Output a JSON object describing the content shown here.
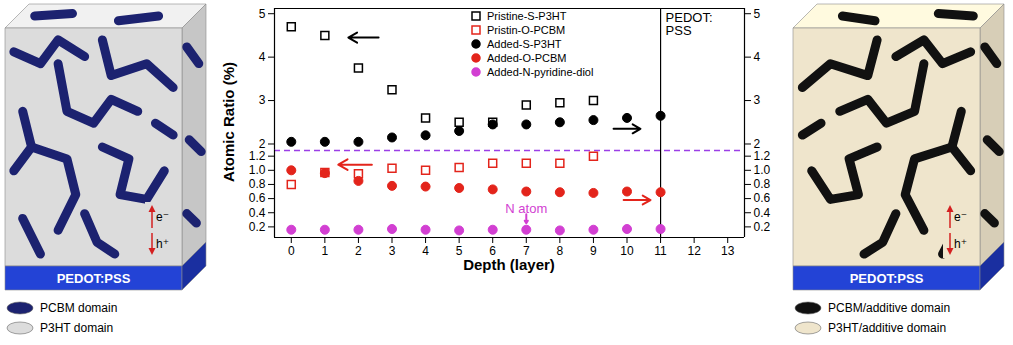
{
  "chart_data": [
    {
      "type": "scatter",
      "ylabel": "Atomic Ratio (%)",
      "xlim": [
        -0.5,
        13.5
      ],
      "ylim": [
        1.85,
        5.12
      ],
      "yticks": [
        2,
        3,
        4,
        5
      ],
      "tick_labels": "y",
      "legend": "top",
      "vertical_line": {
        "x": 11,
        "label": "PEDOT:PSS"
      },
      "series": [
        {
          "name": "Pristine-S-P3HT",
          "color": "#000000",
          "marker": "square-open",
          "x": [
            0,
            1,
            2,
            3,
            4,
            5,
            6,
            7,
            8,
            9
          ],
          "values": [
            4.7,
            4.5,
            3.75,
            3.25,
            2.6,
            2.5,
            2.5,
            2.9,
            2.95,
            3.0
          ]
        },
        {
          "name": "Added-S-P3HT",
          "color": "#000000",
          "marker": "circle",
          "x": [
            0,
            1,
            2,
            3,
            4,
            5,
            6,
            7,
            8,
            9,
            10,
            11
          ],
          "values": [
            2.05,
            2.05,
            2.05,
            2.15,
            2.2,
            2.3,
            2.45,
            2.45,
            2.5,
            2.55,
            2.6,
            2.65
          ]
        }
      ],
      "arrows": [
        {
          "x1": 2.6,
          "y1": 4.45,
          "x2": 1.7,
          "y2": 4.45,
          "color": "#000000"
        },
        {
          "x1": 9.6,
          "y1": 2.35,
          "x2": 10.4,
          "y2": 2.35,
          "color": "#000000"
        }
      ]
    },
    {
      "type": "scatter",
      "xlabel": "Depth (layer)",
      "xlim": [
        -0.5,
        13.5
      ],
      "xticks": [
        0,
        1,
        2,
        3,
        4,
        5,
        6,
        7,
        8,
        9,
        10,
        11,
        12,
        13
      ],
      "ylim": [
        0.05,
        1.28
      ],
      "yticks": [
        0.2,
        0.4,
        0.6,
        0.8,
        {
          "value": 1,
          "label": "1.0"
        },
        1.2
      ],
      "vertical_line": {
        "x": 11
      },
      "series": [
        {
          "name": "Pristin-O-PCBM",
          "color": "#e3241b",
          "marker": "square-open",
          "x": [
            0,
            1,
            2,
            3,
            4,
            5,
            6,
            7,
            8,
            9
          ],
          "values": [
            0.8,
            0.97,
            0.95,
            1.03,
            1.0,
            1.04,
            1.1,
            1.1,
            1.1,
            1.2
          ]
        },
        {
          "name": "Added-O-PCBM",
          "color": "#e3241b",
          "marker": "circle",
          "x": [
            0,
            1,
            2,
            3,
            4,
            5,
            6,
            7,
            8,
            9,
            10,
            11
          ],
          "values": [
            1.0,
            0.96,
            0.85,
            0.78,
            0.77,
            0.75,
            0.73,
            0.7,
            0.69,
            0.68,
            0.7,
            0.69
          ]
        },
        {
          "name": "Added-N-pyridine-diol",
          "color": "#d23fd2",
          "marker": "circle",
          "x": [
            0,
            1,
            2,
            3,
            4,
            5,
            6,
            7,
            8,
            9,
            10,
            11
          ],
          "values": [
            0.16,
            0.16,
            0.16,
            0.17,
            0.16,
            0.15,
            0.16,
            0.16,
            0.15,
            0.16,
            0.17,
            0.17
          ]
        }
      ],
      "arrows": [
        {
          "x1": 2.4,
          "y1": 1.08,
          "x2": 1.4,
          "y2": 1.08,
          "color": "#e3241b"
        },
        {
          "x1": 9.9,
          "y1": 0.58,
          "x2": 10.7,
          "y2": 0.58,
          "color": "#e3241b"
        },
        {
          "x1": 7,
          "y1": 0.38,
          "x2": 7,
          "y2": 0.25,
          "color": "#d23fd2"
        }
      ],
      "annotations": [
        {
          "text": "N atom",
          "x": 7,
          "y": 0.46,
          "color": "#d23fd2"
        }
      ]
    }
  ],
  "diagrams": [
    {
      "substrate": "PEDOT:PSS",
      "electron": "e⁻",
      "hole": "h⁺",
      "legend": [
        {
          "label": "PCBM domain",
          "color": "#1c2270"
        },
        {
          "label": "P3HT domain",
          "color": "#dcdcdc"
        }
      ]
    },
    {
      "substrate": "PEDOT:PSS",
      "electron": "e⁻",
      "hole": "h⁺",
      "legend": [
        {
          "label": "PCBM/additive domain",
          "color": "#111111"
        },
        {
          "label": "P3HT/additive domain",
          "color": "#efe5cc"
        }
      ]
    }
  ]
}
